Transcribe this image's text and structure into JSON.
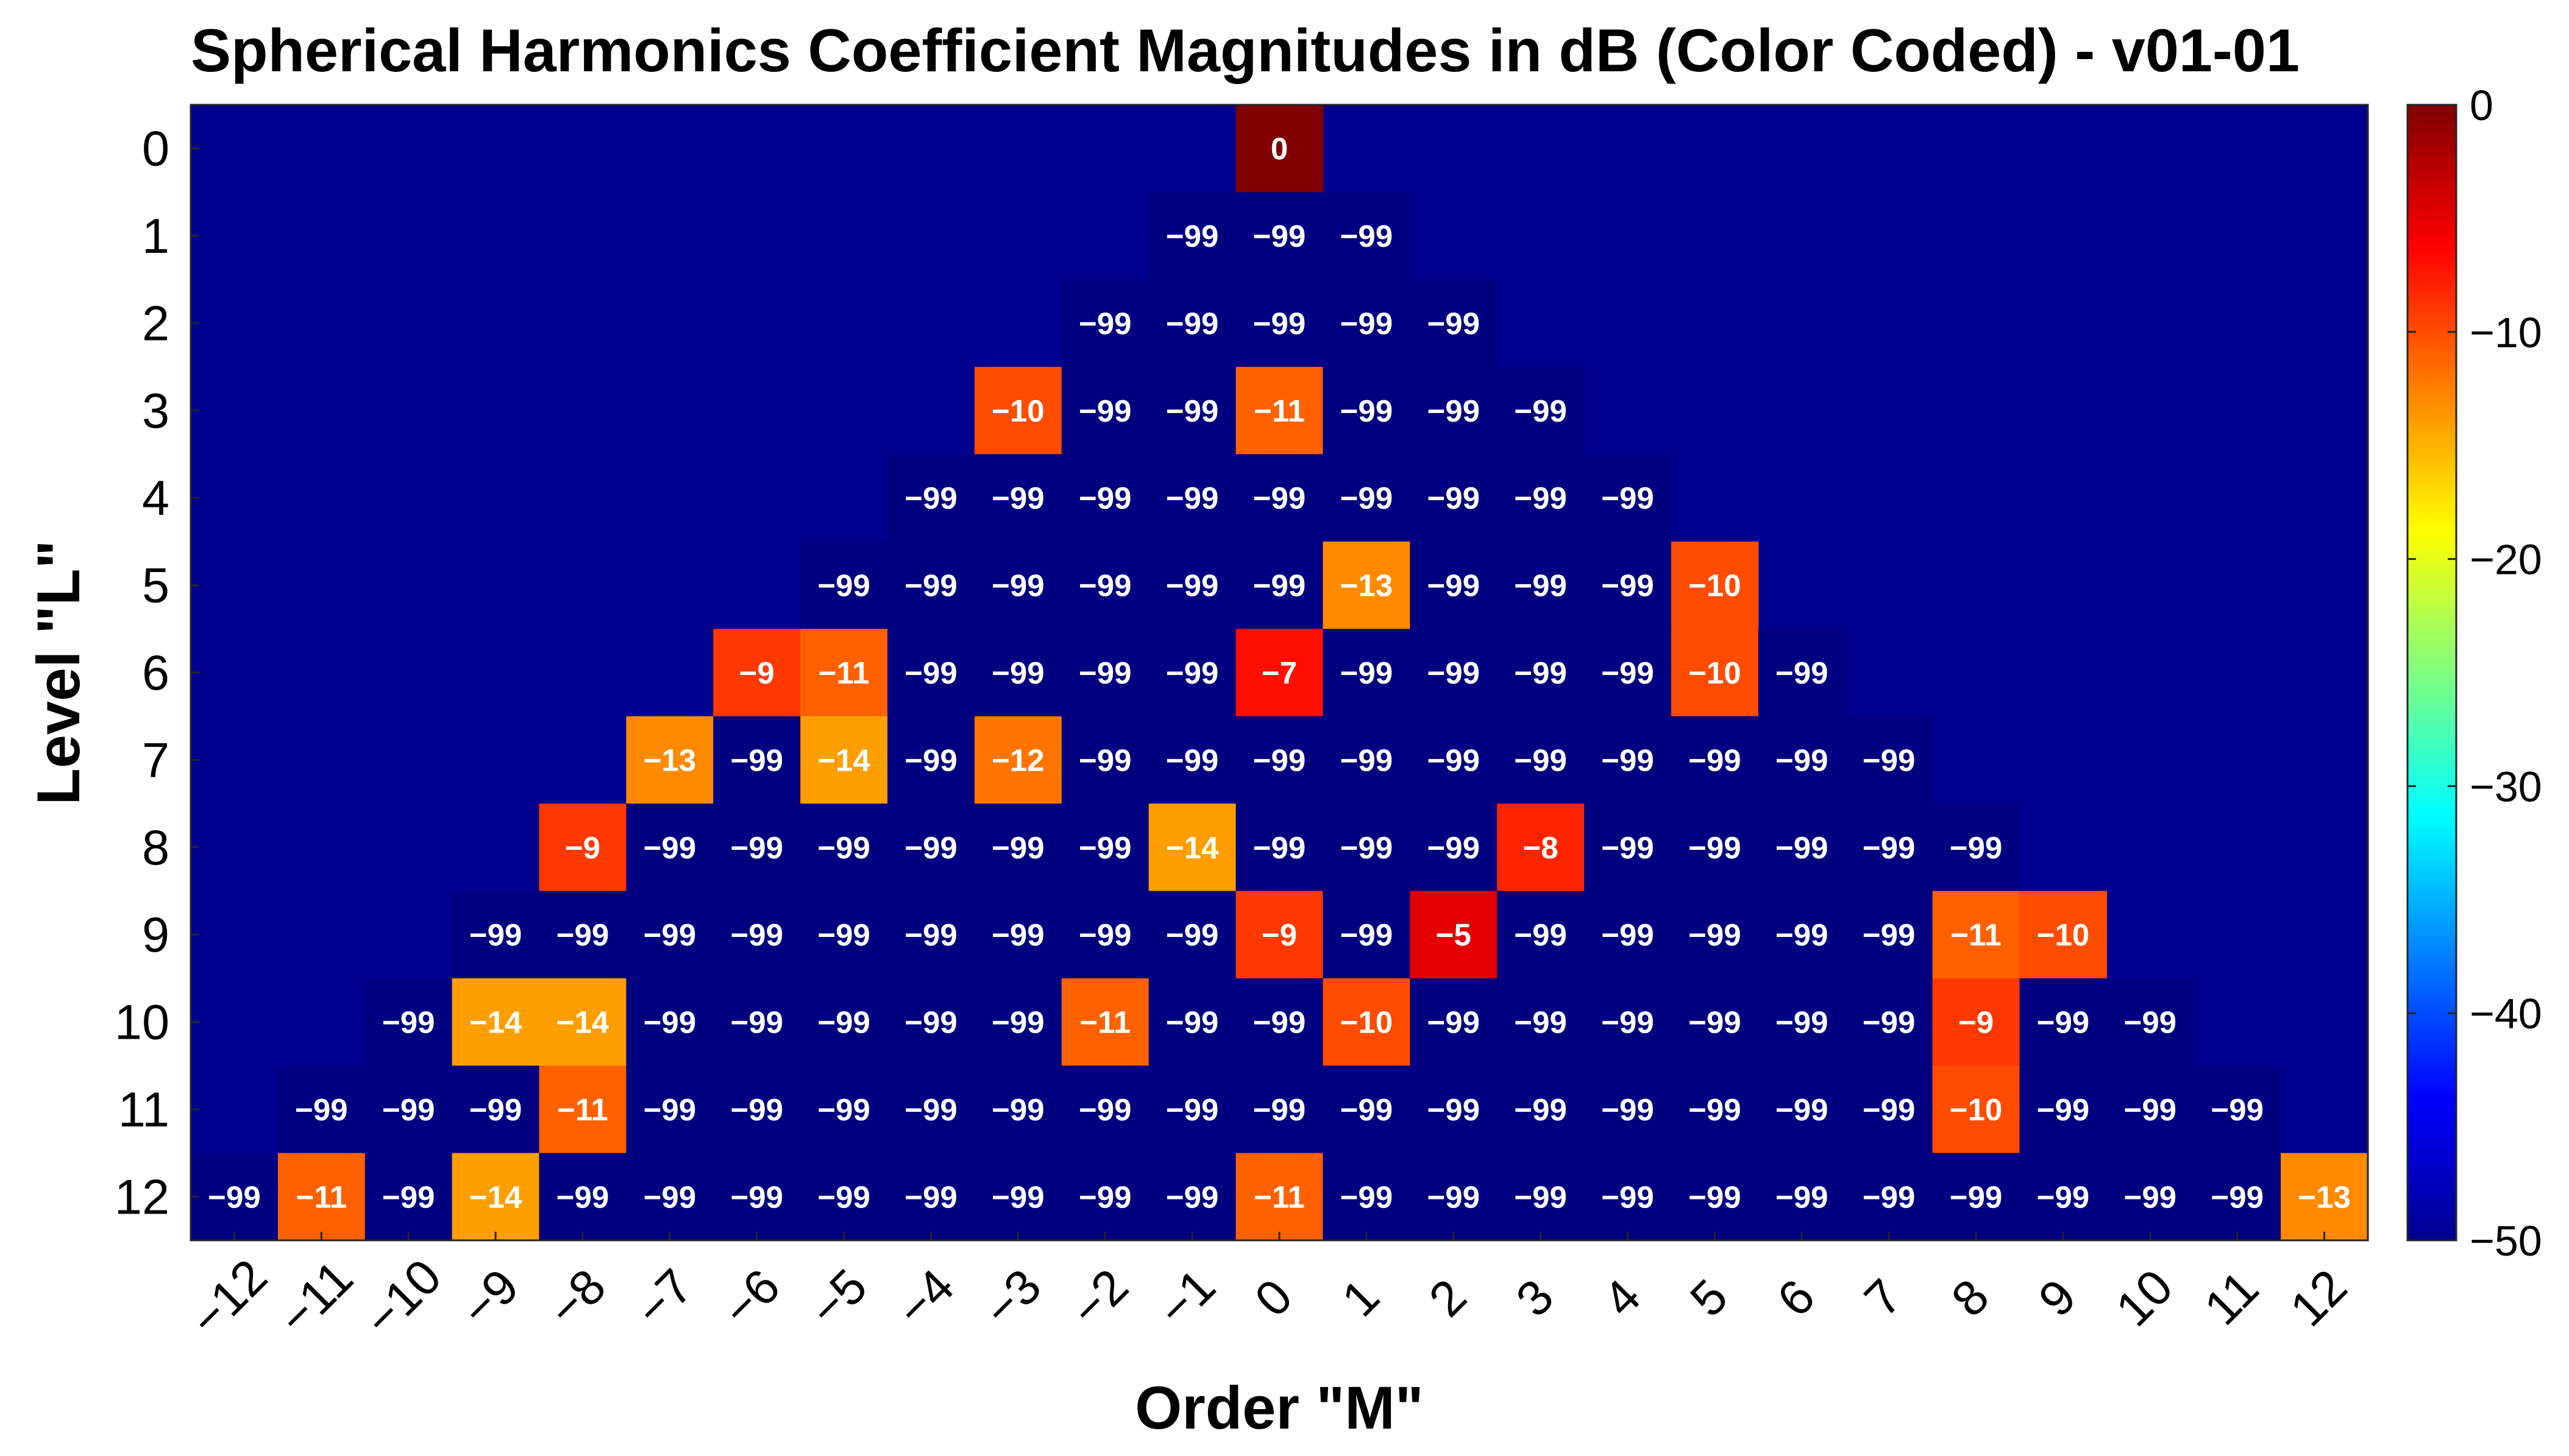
{
  "chart_data": {
    "type": "heatmap",
    "title": "Spherical Harmonics Coefficient Magnitudes in dB (Color Coded) - v01-01",
    "xlabel": "Order  \"M\"",
    "ylabel": "Level  \"L\"",
    "x_tick_labels": [
      "−12",
      "−11",
      "−10",
      "−9",
      "−8",
      "−7",
      "−6",
      "−5",
      "−4",
      "−3",
      "−2",
      "−1",
      "0",
      "1",
      "2",
      "3",
      "4",
      "5",
      "6",
      "7",
      "8",
      "9",
      "10",
      "11",
      "12"
    ],
    "y_tick_labels": [
      "0",
      "1",
      "2",
      "3",
      "4",
      "5",
      "6",
      "7",
      "8",
      "9",
      "10",
      "11",
      "12"
    ],
    "x_values": [
      -12,
      -11,
      -10,
      -9,
      -8,
      -7,
      -6,
      -5,
      -4,
      -3,
      -2,
      -1,
      0,
      1,
      2,
      3,
      4,
      5,
      6,
      7,
      8,
      9,
      10,
      11,
      12
    ],
    "y_values": [
      0,
      1,
      2,
      3,
      4,
      5,
      6,
      7,
      8,
      9,
      10,
      11,
      12
    ],
    "colormap": "jet",
    "clim": [
      -50,
      0
    ],
    "colorbar_ticks": [
      0,
      -10,
      -20,
      -30,
      -40,
      -50
    ],
    "colorbar_tick_labels": [
      "0",
      "−10",
      "−20",
      "−30",
      "−40",
      "−50"
    ],
    "background_color": "#00008f",
    "rows": [
      {
        "L": 0,
        "values": [
          0
        ]
      },
      {
        "L": 1,
        "values": [
          -99,
          -99,
          -99
        ]
      },
      {
        "L": 2,
        "values": [
          -99,
          -99,
          -99,
          -99,
          -99
        ]
      },
      {
        "L": 3,
        "values": [
          -10,
          -99,
          -99,
          -11,
          -99,
          -99,
          -99
        ]
      },
      {
        "L": 4,
        "values": [
          -99,
          -99,
          -99,
          -99,
          -99,
          -99,
          -99,
          -99,
          -99
        ]
      },
      {
        "L": 5,
        "values": [
          -99,
          -99,
          -99,
          -99,
          -99,
          -99,
          -13,
          -99,
          -99,
          -99,
          -10
        ]
      },
      {
        "L": 6,
        "values": [
          -9,
          -11,
          -99,
          -99,
          -99,
          -99,
          -7,
          -99,
          -99,
          -99,
          -99,
          -10,
          -99
        ]
      },
      {
        "L": 7,
        "values": [
          -13,
          -99,
          -14,
          -99,
          -12,
          -99,
          -99,
          -99,
          -99,
          -99,
          -99,
          -99,
          -99,
          -99,
          -99
        ]
      },
      {
        "L": 8,
        "values": [
          -9,
          -99,
          -99,
          -99,
          -99,
          -99,
          -99,
          -14,
          -99,
          -99,
          -99,
          -8,
          -99,
          -99,
          -99,
          -99,
          -99
        ]
      },
      {
        "L": 9,
        "values": [
          -99,
          -99,
          -99,
          -99,
          -99,
          -99,
          -99,
          -99,
          -99,
          -9,
          -99,
          -5,
          -99,
          -99,
          -99,
          -99,
          -99,
          -11,
          -10
        ]
      },
      {
        "L": 10,
        "values": [
          -99,
          -14,
          -14,
          -99,
          -99,
          -99,
          -99,
          -99,
          -11,
          -99,
          -99,
          -10,
          -99,
          -99,
          -99,
          -99,
          -99,
          -99,
          -9,
          -99,
          -99
        ]
      },
      {
        "L": 11,
        "values": [
          -99,
          -99,
          -99,
          -11,
          -99,
          -99,
          -99,
          -99,
          -99,
          -99,
          -99,
          -99,
          -99,
          -99,
          -99,
          -99,
          -99,
          -99,
          -99,
          -10,
          -99,
          -99,
          -99
        ]
      },
      {
        "L": 12,
        "values": [
          -99,
          -11,
          -99,
          -14,
          -99,
          -99,
          -99,
          -99,
          -99,
          -99,
          -99,
          -99,
          -11,
          -99,
          -99,
          -99,
          -99,
          -99,
          -99,
          -99,
          -99,
          -99,
          -99,
          -99,
          -13
        ]
      }
    ]
  }
}
